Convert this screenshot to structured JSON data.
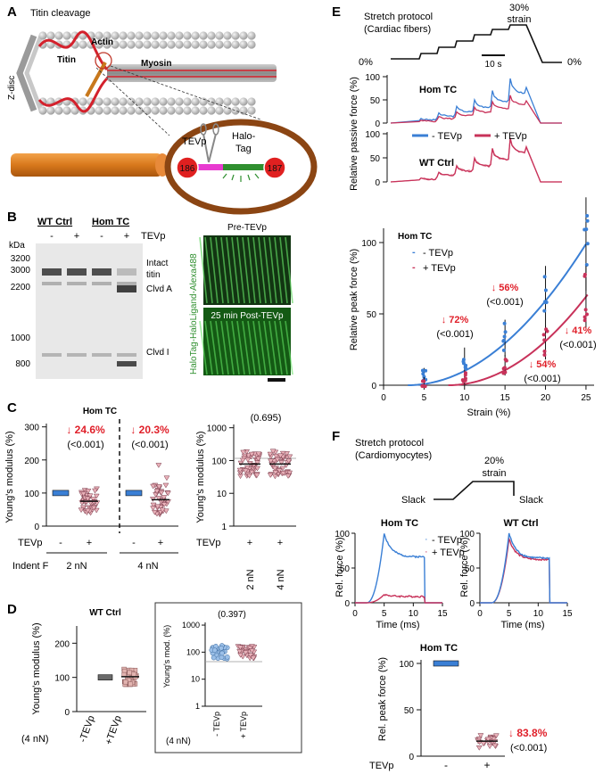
{
  "panels": {
    "A": {
      "letter": "A",
      "title": "Titin cleavage",
      "zdisc": "Z-disc",
      "actin": "Actin",
      "titin": "Titin",
      "myosin": "Myosin",
      "tevp": "TEVp",
      "halotag": [
        "Halo-",
        "Tag"
      ],
      "site_left": "186",
      "site_right": "187"
    },
    "B": {
      "letter": "B",
      "groups": [
        "WT Ctrl",
        "Hom TC"
      ],
      "lane_signs": [
        "-",
        "+",
        "-",
        "+"
      ],
      "tevp_label": "TEVp",
      "kda": "kDa",
      "mw_markers": [
        "3200",
        "3000",
        "2200",
        "1000",
        "800"
      ],
      "bands": [
        "Intact",
        "titin",
        "Clvd A",
        "Clvd I"
      ],
      "img_top": "Pre-TEVp",
      "img_bottom": "25 min Post-TEVp",
      "vertical_label": "HaloTag-HaloLigand-Alexa488"
    },
    "C": {
      "letter": "C",
      "title": "Hom TC",
      "ylabel": "Young's modulus (%)",
      "yticks": [
        "0",
        "100",
        "200",
        "300"
      ],
      "pct1": "↓ 24.6%",
      "p1": "(<0.001)",
      "pct2": "↓ 20.3%",
      "p2": "(<0.001)",
      "tevp": "TEVp",
      "signs": [
        "-",
        "+",
        "-",
        "+"
      ],
      "indent_label": "Indent F",
      "forces": [
        "2 nN",
        "4 nN"
      ],
      "log_ylabel": "Young's modulus (%)",
      "log_yticks": [
        "1",
        "10",
        "100",
        "1000"
      ],
      "log_p": "(0.695)",
      "log_signs": [
        "+",
        "+"
      ],
      "log_forces": [
        "2 nN",
        "4 nN"
      ]
    },
    "D": {
      "letter": "D",
      "title": "WT Ctrl",
      "ylabel": "Young's modulus (%)",
      "yticks": [
        "0",
        "100",
        "200"
      ],
      "xcats": [
        "-TEVp",
        "+TEVp"
      ],
      "force": "(4 nN)",
      "inset_ylabel": "Young's mod. (%)",
      "inset_p": "(0.397)",
      "inset_yticks": [
        "1",
        "10",
        "100",
        "1000"
      ],
      "inset_xcats": [
        "- TEVp",
        "+ TEVp"
      ],
      "inset_force": "(4 nN)"
    },
    "E": {
      "letter": "E",
      "protocol_title": [
        "Stretch protocol",
        "(Cardiac fibers)"
      ],
      "strain_label": [
        "30%",
        "strain"
      ],
      "zero_left": "0%",
      "zero_right": "0%",
      "scalebar": "10 s",
      "trace_ylabel": "Relative passive force (%)",
      "hom_label": "Hom TC",
      "wt_label": "WT Ctrl",
      "trace_ticks": [
        "0",
        "50",
        "100"
      ],
      "legend_minus": "- TEVp",
      "legend_plus": "+ TEVp",
      "curve_title": "Hom TC",
      "curve_ylabel": "Relative peak force (%)",
      "curve_xlabel": "Strain (%)",
      "annotations": [
        {
          "pct": "↓ 72%",
          "p": "(<0.001)"
        },
        {
          "pct": "↓ 56%",
          "p": "(<0.001)"
        },
        {
          "pct": "↓ 54%",
          "p": "(<0.001)"
        },
        {
          "pct": "↓ 41%",
          "p": "(<0.001)"
        }
      ]
    },
    "F": {
      "letter": "F",
      "protocol_title": [
        "Stretch protocol",
        "(Cardiomyocytes)"
      ],
      "strain_label": [
        "20%",
        "strain"
      ],
      "slack_left": "Slack",
      "slack_right": "Slack",
      "left_title": "Hom TC",
      "right_title": "WT Ctrl",
      "ylabel": "Rel. force (%)",
      "xlabel": "Time (ms)",
      "yticks": [
        "0",
        "50",
        "100"
      ],
      "xticks": [
        "0",
        "5",
        "10",
        "15"
      ],
      "legend_minus": "- TEVp",
      "legend_plus": "+ TEVp",
      "bottom_title": "Hom TC",
      "bottom_ylabel": "Rel. peak force (%)",
      "bottom_yticks": [
        "0",
        "50",
        "100"
      ],
      "pct": "↓ 83.8%",
      "p": "(<0.001)",
      "tevp": "TEVp",
      "signs": [
        "-",
        "+"
      ]
    }
  },
  "colors": {
    "minus": "#3a7fd5",
    "plus": "#c8325a",
    "red_text": "#e0202a",
    "green": "#2f8f2f",
    "magenta": "#e83ad0",
    "orange": "#d8781c"
  },
  "chart_data": [
    {
      "type": "line",
      "title": "Hom TC",
      "xlabel": "Strain (%)",
      "ylabel": "Relative peak force (%)",
      "x": [
        0,
        5,
        10,
        15,
        20,
        25
      ],
      "xlim": [
        0,
        26
      ],
      "ylim": [
        0,
        110
      ],
      "xticks": [
        0,
        5,
        10,
        15,
        20,
        25
      ],
      "yticks": [
        0,
        50,
        100
      ],
      "series": [
        {
          "name": "- TEVp",
          "x": [
            5,
            10,
            15,
            20,
            25
          ],
          "values": [
            7,
            18,
            33,
            62,
            99
          ]
        },
        {
          "name": "+ TEVp",
          "x": [
            5,
            10,
            15,
            20,
            25
          ],
          "values": [
            2,
            5,
            14,
            30,
            62
          ]
        }
      ]
    },
    {
      "type": "bar",
      "title": "Hom TC",
      "ylabel": "Rel. peak force (%)",
      "categories": [
        "-",
        "+"
      ],
      "values": [
        100,
        16.2
      ],
      "ylim": [
        0,
        100
      ]
    }
  ]
}
